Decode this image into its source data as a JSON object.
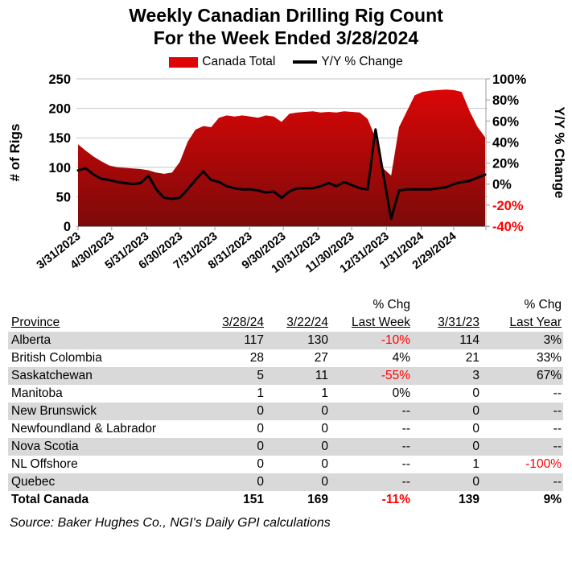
{
  "title": {
    "line1": "Weekly Canadian Drilling Rig Count",
    "line2": "For the Week Ended 3/28/2024"
  },
  "legend": {
    "area_label": "Canada Total",
    "line_label": "Y/Y % Change",
    "area_color": "#dd0505",
    "line_color": "#000000"
  },
  "chart_data": {
    "type": "area+line",
    "x": [
      "3/31/23",
      "4/7/23",
      "4/14/23",
      "4/21/23",
      "4/28/23",
      "5/5/23",
      "5/12/23",
      "5/19/23",
      "5/26/23",
      "6/2/23",
      "6/9/23",
      "6/16/23",
      "6/23/23",
      "6/30/23",
      "7/7/23",
      "7/14/23",
      "7/21/23",
      "7/28/23",
      "8/4/23",
      "8/11/23",
      "8/18/23",
      "8/25/23",
      "9/1/23",
      "9/8/23",
      "9/15/23",
      "9/22/23",
      "9/29/23",
      "10/6/23",
      "10/13/23",
      "10/20/23",
      "10/27/23",
      "11/3/23",
      "11/10/23",
      "11/17/23",
      "11/24/23",
      "12/1/23",
      "12/8/23",
      "12/15/23",
      "12/22/23",
      "12/29/23",
      "1/5/24",
      "1/12/24",
      "1/19/24",
      "1/26/24",
      "2/2/24",
      "2/9/24",
      "2/16/24",
      "2/23/24",
      "3/1/24",
      "3/8/24",
      "3/15/24",
      "3/22/24",
      "3/28/24"
    ],
    "series": [
      {
        "name": "Canada Total",
        "type": "area",
        "axis": "left",
        "color_top": "#e20606",
        "color_bottom": "#7c0a0a",
        "values": [
          139,
          128,
          118,
          110,
          103,
          100,
          99,
          98,
          97,
          95,
          91,
          89,
          91,
          109,
          143,
          164,
          170,
          168,
          184,
          188,
          186,
          188,
          186,
          184,
          188,
          186,
          177,
          191,
          193,
          194,
          195,
          193,
          194,
          193,
          195,
          194,
          193,
          182,
          150,
          98,
          86,
          168,
          195,
          222,
          228,
          230,
          231,
          232,
          231,
          228,
          196,
          169,
          151
        ]
      },
      {
        "name": "Y/Y % Change",
        "type": "line",
        "axis": "right",
        "color": "#000000",
        "values": [
          13,
          15,
          9,
          5,
          4,
          2,
          1,
          0,
          1,
          8,
          -5,
          -13,
          -14,
          -13,
          -5,
          4,
          12,
          4,
          2,
          -2,
          -4,
          -5,
          -5,
          -6,
          -8,
          -7,
          -13,
          -7,
          -4,
          -4,
          -4,
          -2,
          1,
          -2,
          2,
          -1,
          -4,
          -5,
          52,
          9,
          -33,
          -6,
          -5,
          -5,
          -5,
          -5,
          -4,
          -3,
          0,
          2,
          3,
          6,
          9
        ]
      }
    ],
    "left_axis": {
      "title": "# of Rigs",
      "min": 0,
      "max": 250,
      "step": 50,
      "ticks": [
        "0",
        "50",
        "100",
        "150",
        "200",
        "250"
      ]
    },
    "right_axis": {
      "title": "Y/Y % Change",
      "min": -40,
      "max": 100,
      "step": 20,
      "ticks": [
        "100%",
        "80%",
        "60%",
        "40%",
        "20%",
        "0%",
        "-20%",
        "-40%"
      ],
      "negative_color": "#ff0000"
    },
    "x_tick_labels": [
      "3/31/2023",
      "4/30/2023",
      "5/31/2023",
      "6/30/2023",
      "7/31/2023",
      "8/31/2023",
      "9/30/2023",
      "10/31/2023",
      "11/30/2023",
      "12/31/2023",
      "1/31/2024",
      "2/29/2024"
    ],
    "gridlines": true,
    "legend_position": "top"
  },
  "table": {
    "header": {
      "province": "Province",
      "week_current": "3/28/24",
      "week_prior": "3/22/24",
      "pct_chg_week_top": "% Chg",
      "last_week": "Last Week",
      "year_ago": "3/31/23",
      "pct_chg_year_top": "% Chg",
      "last_year": "Last Year"
    },
    "negative_color": "#ff0000",
    "shaded_row_color": "#d9d9d9",
    "rows": [
      {
        "province": "Alberta",
        "current": "117",
        "prior": "130",
        "chg_week": "-10%",
        "year_ago": "114",
        "chg_year": "3%",
        "shaded": true
      },
      {
        "province": "British Colombia",
        "current": "28",
        "prior": "27",
        "chg_week": "4%",
        "year_ago": "21",
        "chg_year": "33%",
        "shaded": false
      },
      {
        "province": "Saskatchewan",
        "current": "5",
        "prior": "11",
        "chg_week": "-55%",
        "year_ago": "3",
        "chg_year": "67%",
        "shaded": true
      },
      {
        "province": "Manitoba",
        "current": "1",
        "prior": "1",
        "chg_week": "0%",
        "year_ago": "0",
        "chg_year": "--",
        "shaded": false
      },
      {
        "province": "New Brunswick",
        "current": "0",
        "prior": "0",
        "chg_week": "--",
        "year_ago": "0",
        "chg_year": "--",
        "shaded": true
      },
      {
        "province": "Newfoundland & Labrador",
        "current": "0",
        "prior": "0",
        "chg_week": "--",
        "year_ago": "0",
        "chg_year": "--",
        "shaded": false
      },
      {
        "province": "Nova Scotia",
        "current": "0",
        "prior": "0",
        "chg_week": "--",
        "year_ago": "0",
        "chg_year": "--",
        "shaded": true
      },
      {
        "province": "NL Offshore",
        "current": "0",
        "prior": "0",
        "chg_week": "--",
        "year_ago": "1",
        "chg_year": "-100%",
        "shaded": false
      },
      {
        "province": "Quebec",
        "current": "0",
        "prior": "0",
        "chg_week": "--",
        "year_ago": "0",
        "chg_year": "--",
        "shaded": true
      },
      {
        "province": "Total Canada",
        "current": "151",
        "prior": "169",
        "chg_week": "-11%",
        "year_ago": "139",
        "chg_year": "9%",
        "shaded": false,
        "bold": true
      }
    ]
  },
  "source": "Source: Baker Hughes Co., NGI's Daily GPI calculations"
}
